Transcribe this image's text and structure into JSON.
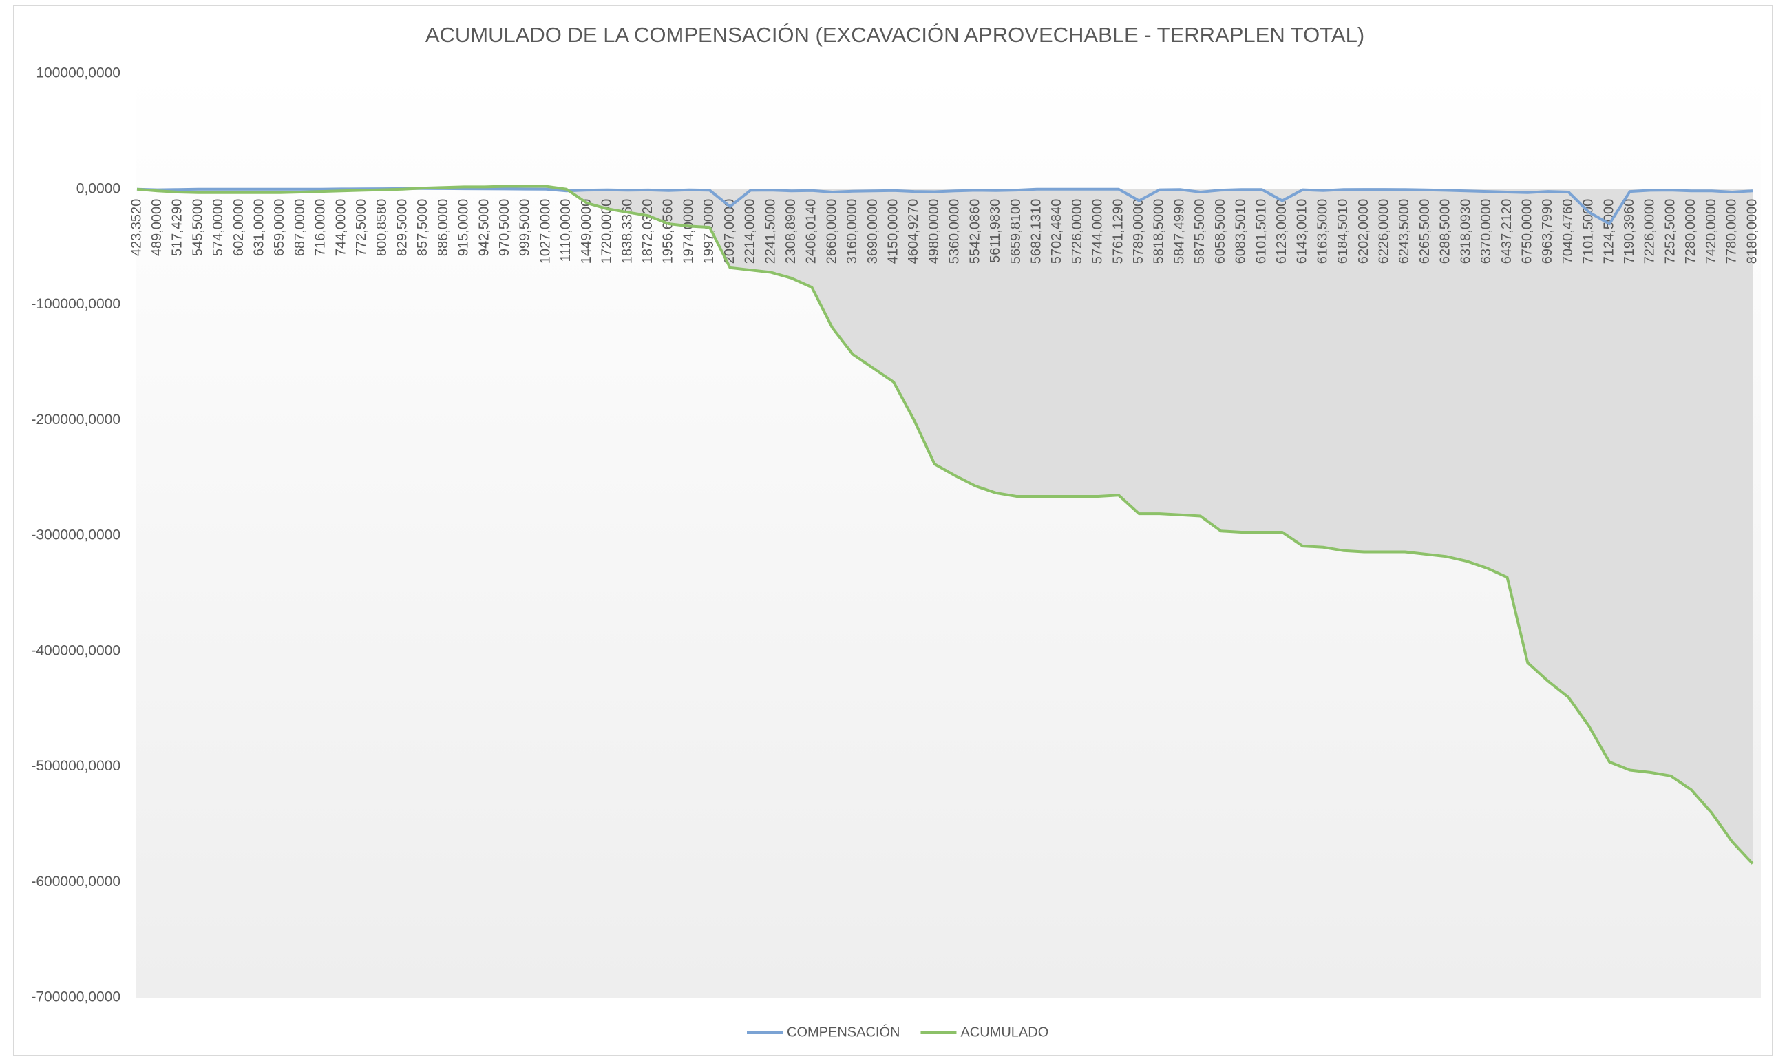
{
  "chart_data": {
    "type": "line",
    "title": "ACUMULADO DE LA COMPENSACIÓN (EXCAVACIÓN APROVECHABLE - TERRAPLEN TOTAL)",
    "categories": [
      "423,3520",
      "489,0000",
      "517,4290",
      "545,5000",
      "574,0000",
      "602,0000",
      "631,0000",
      "659,0000",
      "687,0000",
      "716,0000",
      "744,0000",
      "772,5000",
      "800,8580",
      "829,5000",
      "857,5000",
      "886,0000",
      "915,0000",
      "942,5000",
      "970,5000",
      "999,5000",
      "1027,0000",
      "1110,0000",
      "1449,0000",
      "1720,0000",
      "1838,3360",
      "1872,0320",
      "1956,6560",
      "1974,0000",
      "1997,0000",
      "2097,0000",
      "2214,0000",
      "2241,5000",
      "2308,8900",
      "2406,0140",
      "2660,0000",
      "3160,0000",
      "3690,0000",
      "4150,0000",
      "4604,9270",
      "4980,0000",
      "5360,0000",
      "5542,0860",
      "5611,9830",
      "5659,8100",
      "5682,1310",
      "5702,4840",
      "5726,0000",
      "5744,0000",
      "5761,1290",
      "5789,0000",
      "5818,5000",
      "5847,4990",
      "5875,5000",
      "6058,5000",
      "6083,5010",
      "6101,5010",
      "6123,0000",
      "6143,0010",
      "6163,5000",
      "6184,5010",
      "6202,0000",
      "6226,0000",
      "6243,5000",
      "6265,5000",
      "6288,5000",
      "6318,0930",
      "6370,0000",
      "6437,2120",
      "6750,0000",
      "6963,7990",
      "7040,4760",
      "7101,5000",
      "7124,5000",
      "7190,3960",
      "7226,0000",
      "7252,5000",
      "7280,0000",
      "7420,0000",
      "7780,0000",
      "8180,0000"
    ],
    "series": [
      {
        "name": "COMPENSACIÓN",
        "color": "#7ba3d4",
        "values": [
          0,
          -500,
          -300,
          0,
          0,
          0,
          0,
          0,
          0,
          0,
          200,
          300,
          400,
          500,
          600,
          500,
          400,
          300,
          200,
          100,
          0,
          -1500,
          -800,
          -600,
          -900,
          -700,
          -1200,
          -600,
          -900,
          -15000,
          -1000,
          -800,
          -1500,
          -1200,
          -2500,
          -1800,
          -1500,
          -1200,
          -2000,
          -2200,
          -1500,
          -1000,
          -1200,
          -800,
          0,
          0,
          0,
          0,
          0,
          -10000,
          -500,
          -300,
          -2500,
          -800,
          -300,
          -300,
          -10000,
          -500,
          -1200,
          -300,
          -200,
          -200,
          -300,
          -600,
          -1000,
          -1500,
          -2000,
          -2500,
          -3000,
          -2000,
          -2500,
          -20000,
          -30000,
          -2000,
          -1000,
          -800,
          -1500,
          -1500,
          -2500,
          -1500
        ]
      },
      {
        "name": "ACUMULADO",
        "color": "#8cc168",
        "values": [
          0,
          -1500,
          -2500,
          -3000,
          -3000,
          -3000,
          -3000,
          -3000,
          -2500,
          -2000,
          -1500,
          -1000,
          -500,
          0,
          1000,
          1500,
          2000,
          2000,
          2500,
          2500,
          2500,
          0,
          -12000,
          -17000,
          -20000,
          -23000,
          -30000,
          -32000,
          -33000,
          -68000,
          -70000,
          -72000,
          -77000,
          -85000,
          -120000,
          -143000,
          -155000,
          -167000,
          -200000,
          -238000,
          -248000,
          -257000,
          -263000,
          -266000,
          -266000,
          -266000,
          -266000,
          -266000,
          -265000,
          -281000,
          -281000,
          -282000,
          -283000,
          -296000,
          -297000,
          -297000,
          -297000,
          -309000,
          -310000,
          -313000,
          -314000,
          -314000,
          -314000,
          -316000,
          -318000,
          -322000,
          -328000,
          -336000,
          -410000,
          -426000,
          -440000,
          -465000,
          -496000,
          -503000,
          -505000,
          -508000,
          -520000,
          -540000,
          -565000,
          -584000
        ]
      }
    ],
    "ylim": [
      -700000,
      100000
    ],
    "yticks": [
      {
        "value": -700000,
        "label": "-700000,0000"
      },
      {
        "value": -600000,
        "label": "-600000,0000"
      },
      {
        "value": -500000,
        "label": "-500000,0000"
      },
      {
        "value": -400000,
        "label": "-400000,0000"
      },
      {
        "value": -300000,
        "label": "-300000,0000"
      },
      {
        "value": -200000,
        "label": "-200000,0000"
      },
      {
        "value": -100000,
        "label": "-100000,0000"
      },
      {
        "value": 0,
        "label": "0,0000"
      },
      {
        "value": 100000,
        "label": "100000,0000"
      }
    ],
    "legend": "bottom"
  }
}
